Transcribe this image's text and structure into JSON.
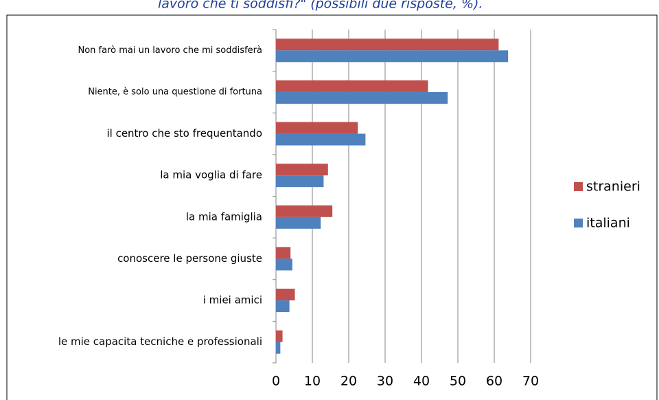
{
  "chart_data": {
    "type": "hbar",
    "title": "lavoro che ti soddisfi?\" (possibili due risposte, %).",
    "categories": [
      "Non farò mai un lavoro che mi soddisferà",
      "Niente, è solo una questione di fortuna",
      "il centro che sto frequentando",
      "la mia voglia di fare",
      "la mia famiglia",
      "conoscere le persone giuste",
      "i miei amici",
      "le mie capacita tecniche e professionali"
    ],
    "series": [
      {
        "name": "stranieri",
        "color": "#c0504d",
        "values": [
          61.2,
          41.8,
          22.5,
          14.3,
          15.5,
          4.0,
          5.2,
          1.8
        ]
      },
      {
        "name": "italiani",
        "color": "#4f81bd",
        "values": [
          63.8,
          47.2,
          24.6,
          13.1,
          12.3,
          4.5,
          3.7,
          1.2
        ]
      }
    ],
    "xlim": [
      0,
      70
    ],
    "xticks": [
      0,
      10,
      20,
      30,
      40,
      50,
      60,
      70
    ],
    "grid": true,
    "legend": "right"
  }
}
